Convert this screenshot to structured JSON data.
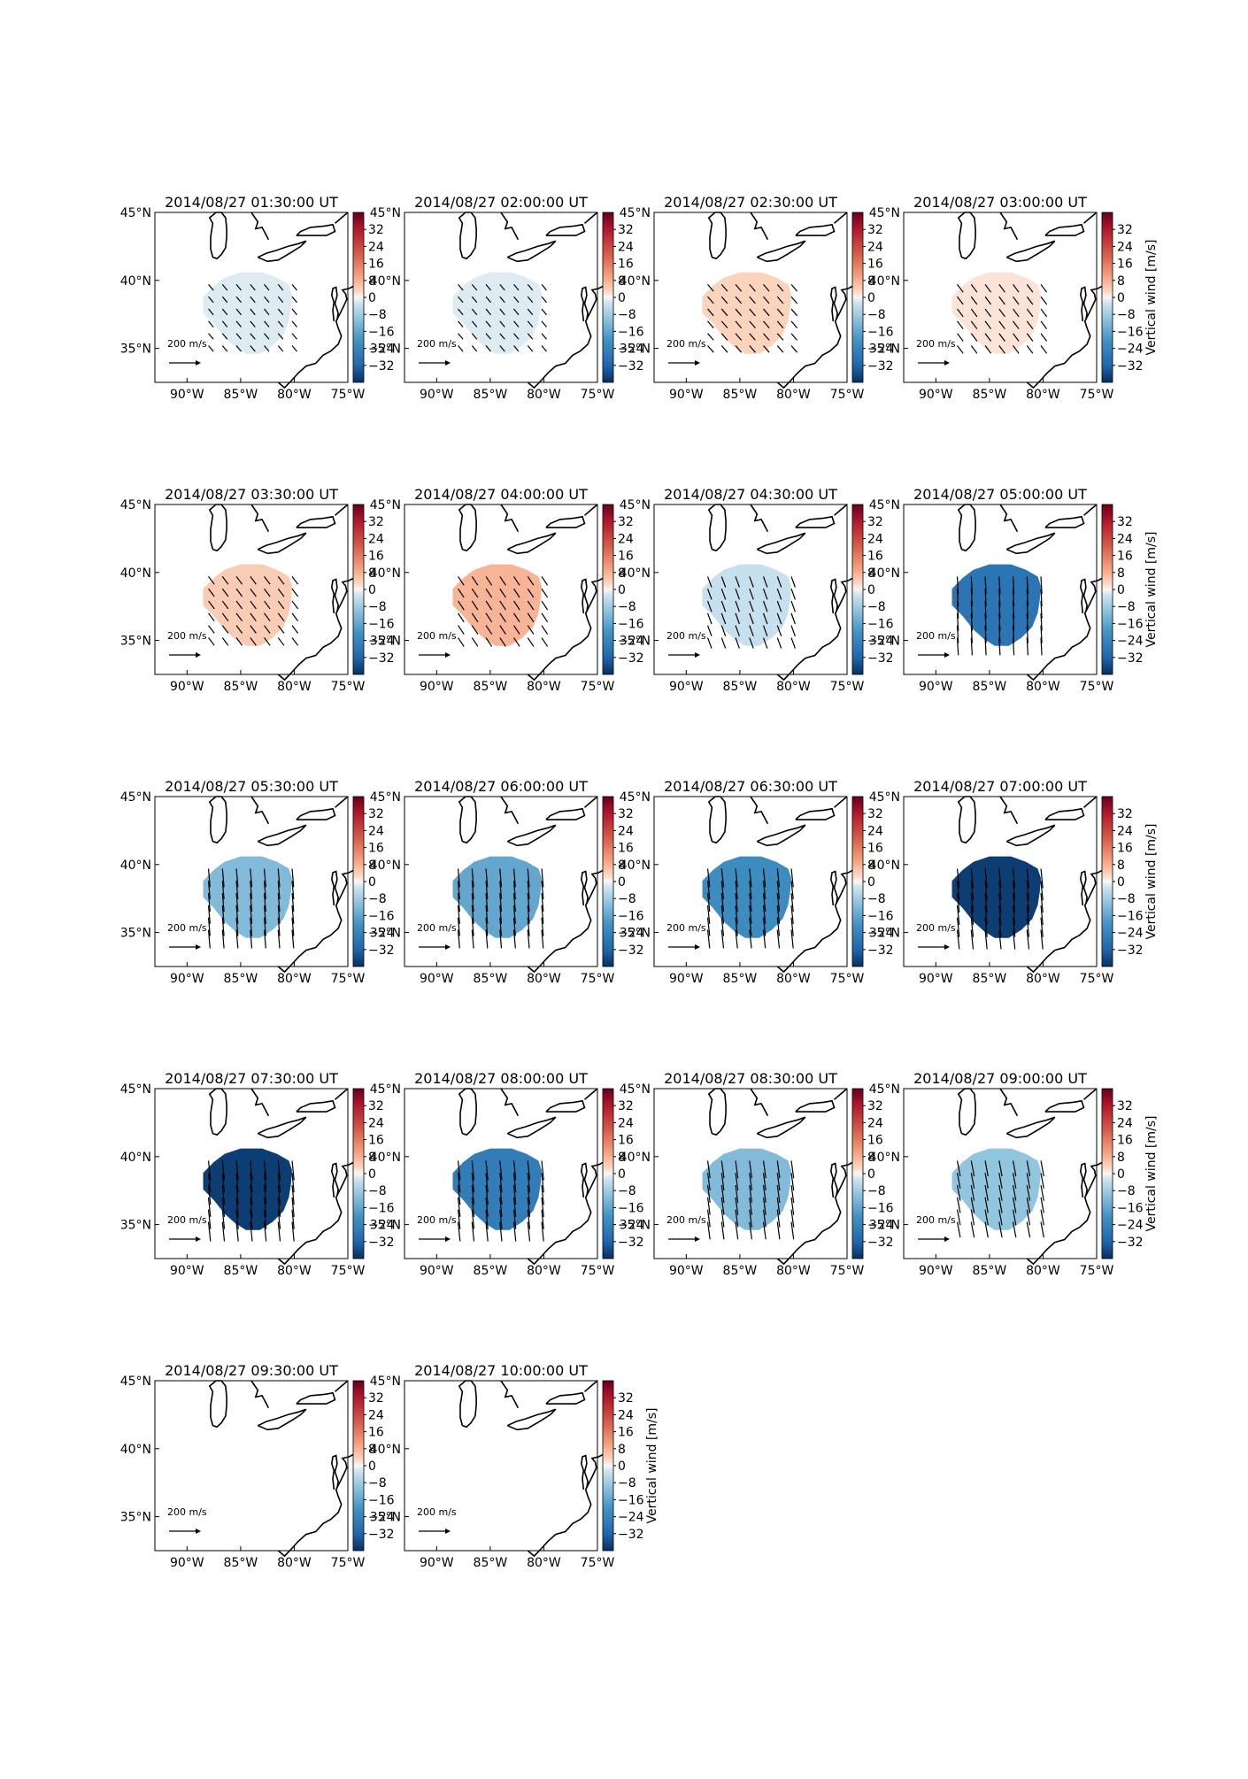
{
  "chart_data": {
    "type": "heatmap",
    "description_units": {
      "longitude": "degrees (negative = West)",
      "latitude": "degrees North"
    },
    "xlim": [
      -93,
      -75
    ],
    "ylim": [
      32.5,
      45
    ],
    "xticks": [
      -90,
      -85,
      -80,
      -75
    ],
    "xtick_labels": [
      "90°W",
      "85°W",
      "80°W",
      "75°W"
    ],
    "yticks": [
      35,
      40,
      45
    ],
    "ytick_labels": [
      "35°N",
      "40°N",
      "45°N"
    ],
    "colorbar": {
      "label": "Vertical wind [m/s]",
      "range": [
        -40,
        40
      ],
      "ticks": [
        32,
        24,
        16,
        8,
        0,
        -8,
        -16,
        -24,
        -32
      ],
      "tick_labels": [
        "32",
        "24",
        "16",
        "8",
        "0",
        "−8",
        "−16",
        "−24",
        "−32"
      ],
      "colormap": "RdBu_r",
      "low_color": "#053061",
      "high_color": "#67001f"
    },
    "quiver_key_label": "200 m/s",
    "panels": [
      {
        "title": "2014/08/27 01:30:00 UT",
        "value": -2,
        "arrow_u": 25,
        "arrow_v": -30,
        "show_cbar_label": false
      },
      {
        "title": "2014/08/27 02:00:00 UT",
        "value": -2,
        "arrow_u": 25,
        "arrow_v": -30,
        "show_cbar_label": false
      },
      {
        "title": "2014/08/27 02:30:00 UT",
        "value": 4,
        "arrow_u": 30,
        "arrow_v": -35,
        "show_cbar_label": false
      },
      {
        "title": "2014/08/27 03:00:00 UT",
        "value": 2,
        "arrow_u": 30,
        "arrow_v": -40,
        "show_cbar_label": true
      },
      {
        "title": "2014/08/27 03:30:00 UT",
        "value": 5,
        "arrow_u": 30,
        "arrow_v": -40,
        "show_cbar_label": false
      },
      {
        "title": "2014/08/27 04:00:00 UT",
        "value": 8,
        "arrow_u": 30,
        "arrow_v": -45,
        "show_cbar_label": false
      },
      {
        "title": "2014/08/27 04:30:00 UT",
        "value": -4,
        "arrow_u": 20,
        "arrow_v": -55,
        "show_cbar_label": false
      },
      {
        "title": "2014/08/27 05:00:00 UT",
        "value": -28,
        "arrow_u": 5,
        "arrow_v": -90,
        "show_cbar_label": true
      },
      {
        "title": "2014/08/27 05:30:00 UT",
        "value": -12,
        "arrow_u": 8,
        "arrow_v": -95,
        "show_cbar_label": false
      },
      {
        "title": "2014/08/27 06:00:00 UT",
        "value": -16,
        "arrow_u": 8,
        "arrow_v": -95,
        "show_cbar_label": false
      },
      {
        "title": "2014/08/27 06:30:00 UT",
        "value": -22,
        "arrow_u": 10,
        "arrow_v": -95,
        "show_cbar_label": false
      },
      {
        "title": "2014/08/27 07:00:00 UT",
        "value": -38,
        "arrow_u": 10,
        "arrow_v": -100,
        "show_cbar_label": true
      },
      {
        "title": "2014/08/27 07:30:00 UT",
        "value": -38,
        "arrow_u": 10,
        "arrow_v": -100,
        "show_cbar_label": false
      },
      {
        "title": "2014/08/27 08:00:00 UT",
        "value": -26,
        "arrow_u": 10,
        "arrow_v": -100,
        "show_cbar_label": false
      },
      {
        "title": "2014/08/27 08:30:00 UT",
        "value": -12,
        "arrow_u": 12,
        "arrow_v": -90,
        "show_cbar_label": false
      },
      {
        "title": "2014/08/27 09:00:00 UT",
        "value": -10,
        "arrow_u": 15,
        "arrow_v": -80,
        "show_cbar_label": true
      },
      {
        "title": "2014/08/27 09:30:00 UT",
        "value": null,
        "arrow_u": 0,
        "arrow_v": 0,
        "show_cbar_label": false
      },
      {
        "title": "2014/08/27 10:00:00 UT",
        "value": null,
        "arrow_u": 0,
        "arrow_v": 0,
        "show_cbar_label": true
      }
    ]
  }
}
